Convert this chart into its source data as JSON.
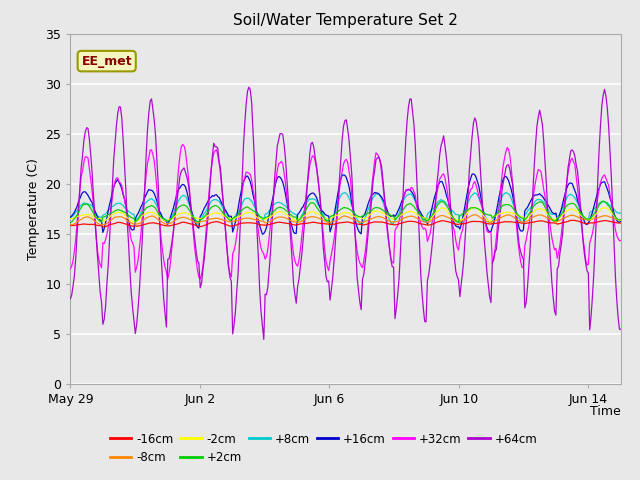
{
  "title": "Soil/Water Temperature Set 2",
  "xlabel": "Time",
  "ylabel": "Temperature (C)",
  "ylim": [
    0,
    35
  ],
  "yticks": [
    0,
    5,
    10,
    15,
    20,
    25,
    30,
    35
  ],
  "n_days": 17,
  "x_tick_labels": [
    "May 29",
    "Jun 2",
    "Jun 6",
    "Jun 10",
    "Jun 14"
  ],
  "x_tick_days": [
    0,
    4,
    8,
    12,
    16
  ],
  "annotation_text": "EE_met",
  "series": [
    {
      "label": "-16cm",
      "color": "#ff0000",
      "base": 15.9,
      "amp": 0.15,
      "noise": 0.04
    },
    {
      "label": "-8cm",
      "color": "#ff8800",
      "base": 16.3,
      "amp": 0.28,
      "noise": 0.06
    },
    {
      "label": "-2cm",
      "color": "#ffff00",
      "base": 16.7,
      "amp": 0.45,
      "noise": 0.08
    },
    {
      "label": "+2cm",
      "color": "#00cc00",
      "base": 17.0,
      "amp": 0.7,
      "noise": 0.1
    },
    {
      "label": "+8cm",
      "color": "#00cccc",
      "base": 17.4,
      "amp": 1.1,
      "noise": 0.14
    },
    {
      "label": "+16cm",
      "color": "#0000cc",
      "base": 17.8,
      "amp": 2.0,
      "noise": 0.2
    },
    {
      "label": "+32cm",
      "color": "#ff00ff",
      "base": 17.2,
      "amp": 4.5,
      "noise": 0.5
    },
    {
      "label": "+64cm",
      "color": "#aa00cc",
      "base": 17.0,
      "amp": 8.5,
      "noise": 0.8
    }
  ],
  "bg_color": "#e8e8e8",
  "plot_bg_light": "#f0f0f0",
  "plot_bg_dark": "#d8d8d8",
  "grid_color": "#ffffff"
}
